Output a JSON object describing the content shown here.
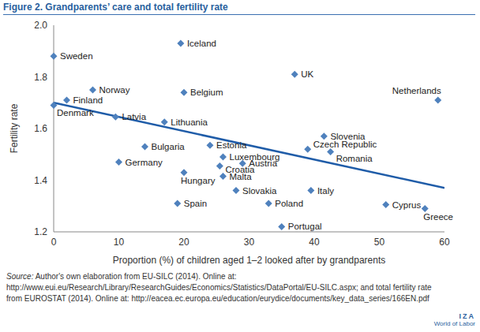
{
  "chart_data": {
    "type": "scatter",
    "title": "Figure 2. Grandparents’ care and total fertility rate",
    "x_label": "Proportion (%) of children aged 1–2 looked after by grandparents",
    "y_label": "Fertility rate",
    "labels": [
      "Sweden",
      "Denmark",
      "Finland",
      "Norway",
      "Latvia",
      "Germany",
      "Bulgaria",
      "Lithuania",
      "Iceland",
      "Belgium",
      "Spain",
      "Hungary",
      "Estonia",
      "Luxembourg",
      "Croatia",
      "Malta",
      "Austria",
      "Slovakia",
      "Poland",
      "Portugal",
      "UK",
      "Czech Republic",
      "Slovenia",
      "Romania",
      "Italy",
      "Cyprus",
      "Greece",
      "Netherlands"
    ],
    "x": [
      0,
      0,
      2,
      6,
      9.5,
      10,
      14,
      17,
      19.5,
      20,
      19,
      20,
      24,
      26,
      25.5,
      26,
      29,
      28,
      33,
      35,
      37,
      39,
      41.5,
      42.5,
      39.5,
      51,
      57,
      59
    ],
    "values": [
      1.88,
      1.69,
      1.71,
      1.75,
      1.645,
      1.47,
      1.53,
      1.625,
      1.93,
      1.74,
      1.31,
      1.43,
      1.535,
      1.49,
      1.455,
      1.415,
      1.465,
      1.36,
      1.31,
      1.22,
      1.81,
      1.52,
      1.57,
      1.51,
      1.36,
      1.305,
      1.29,
      1.71
    ],
    "color": "#4f81bd",
    "marker": "diamond",
    "trend_line": {
      "x": [
        0,
        60
      ],
      "values": [
        1.7,
        1.37
      ],
      "color": "#1f5ca8",
      "line_style": "solid"
    },
    "xlim": [
      0,
      60
    ],
    "xticks": [
      0,
      10,
      20,
      30,
      40,
      50,
      60
    ],
    "ylim": [
      1.2,
      2
    ],
    "yticks": [
      1.2,
      1.4,
      1.6,
      1.8,
      {
        "value": 2,
        "label": "2.0"
      }
    ],
    "grid": false
  },
  "source_label": "Source:",
  "source": "Author's own elaboration from EU-SILC (2014). Online at: http://www.eui.eu/Research/Library/ResearchGuides/Economics/Statistics/DataPortal/EU-SILC.aspx; and total fertility rate from EUROSTAT (2014). Online at: http://eacea.ec.europa.eu/education/eurydice/documents/key_data_series/166EN.pdf",
  "logo": [
    "IZA",
    "World of Labor"
  ]
}
